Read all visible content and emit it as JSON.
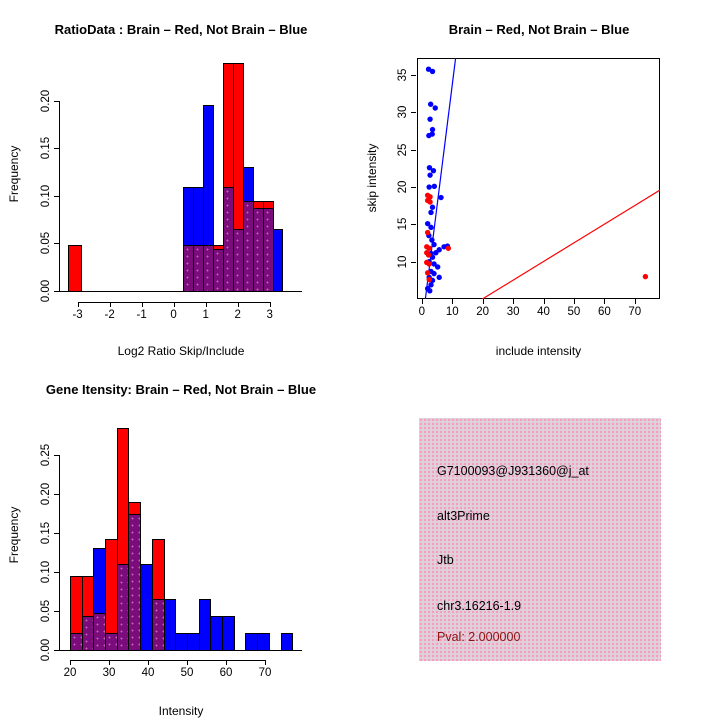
{
  "figure": {
    "background": "#ffffff"
  },
  "colors": {
    "red": "#ff0000",
    "blue": "#0000ff",
    "overlap_purple": "#7b0c7b",
    "axis": "#000000",
    "info_box_bg": "#ddd2dc",
    "pval_text": "#8b1212"
  },
  "info_box": {
    "lines": [
      "G7100093@J931360@j_at",
      "alt3Prime",
      "Jtb",
      "chr3.16216-1.9"
    ],
    "pval_line": "Pval: 2.000000"
  },
  "chart_data": [
    {
      "id": "ratio_hist",
      "type": "bar",
      "subtype": "overlaid-histograms",
      "title": "RatioData : Brain – Red, Not Brain – Blue",
      "xlabel": "Log2 Ratio Skip/Include",
      "ylabel": "Frequency",
      "legend": {
        "Brain": "red",
        "Not Brain": "blue",
        "overlap": "purple"
      },
      "xlim": [
        -3.55,
        4.01
      ],
      "ylim": [
        0,
        0.245
      ],
      "xticks": [
        {
          "v": -3,
          "t": "-3"
        },
        {
          "v": -2,
          "t": "-2"
        },
        {
          "v": -1,
          "t": "-1"
        },
        {
          "v": 0,
          "t": "0"
        },
        {
          "v": 1,
          "t": "1"
        },
        {
          "v": 2,
          "t": "2"
        },
        {
          "v": 3,
          "t": "3"
        }
      ],
      "yticks": [
        {
          "v": 0,
          "t": "0.00"
        },
        {
          "v": 0.05,
          "t": "0.05"
        },
        {
          "v": 0.1,
          "t": "0.10"
        },
        {
          "v": 0.15,
          "t": "0.15"
        },
        {
          "v": 0.2,
          "t": "0.20"
        }
      ],
      "bars": [
        {
          "x0": -3.31,
          "x1": -2.9,
          "red": 0.048,
          "blue": 0
        },
        {
          "x0": 0.3,
          "x1": 0.61,
          "red": 0.048,
          "blue": 0.109
        },
        {
          "x0": 0.61,
          "x1": 0.92,
          "red": 0.048,
          "blue": 0.109
        },
        {
          "x0": 0.92,
          "x1": 1.23,
          "red": 0.048,
          "blue": 0.196
        },
        {
          "x0": 1.23,
          "x1": 1.54,
          "red": 0.048,
          "blue": 0.044
        },
        {
          "x0": 1.54,
          "x1": 1.85,
          "red": 0.24,
          "blue": 0.109
        },
        {
          "x0": 1.85,
          "x1": 2.16,
          "red": 0.24,
          "blue": 0.065
        },
        {
          "x0": 2.16,
          "x1": 2.47,
          "red": 0.095,
          "blue": 0.13
        },
        {
          "x0": 2.47,
          "x1": 2.78,
          "red": 0.095,
          "blue": 0.087
        },
        {
          "x0": 2.78,
          "x1": 3.09,
          "red": 0.095,
          "blue": 0.087
        },
        {
          "x0": 3.09,
          "x1": 3.4,
          "red": 0,
          "blue": 0.065
        }
      ]
    },
    {
      "id": "intensity_scatter",
      "type": "scatter",
      "title": "Brain – Red, Not Brain – Blue",
      "xlabel": "include intensity",
      "ylabel": "skip intensity",
      "legend": {
        "Brain": "red",
        "Not Brain": "blue"
      },
      "xlim": [
        -1.6,
        78.3
      ],
      "ylim": [
        5,
        37.3
      ],
      "xticks": [
        {
          "v": 0,
          "t": "0"
        },
        {
          "v": 10,
          "t": "10"
        },
        {
          "v": 20,
          "t": "20"
        },
        {
          "v": 30,
          "t": "30"
        },
        {
          "v": 40,
          "t": "40"
        },
        {
          "v": 50,
          "t": "50"
        },
        {
          "v": 60,
          "t": "60"
        },
        {
          "v": 70,
          "t": "70"
        }
      ],
      "yticks": [
        {
          "v": 10,
          "t": "10"
        },
        {
          "v": 15,
          "t": "15"
        },
        {
          "v": 20,
          "t": "20"
        },
        {
          "v": 25,
          "t": "25"
        },
        {
          "v": 30,
          "t": "30"
        },
        {
          "v": 35,
          "t": "35"
        }
      ],
      "blue_points": [
        [
          2.2,
          35.8
        ],
        [
          3.5,
          35.5
        ],
        [
          2.9,
          31.1
        ],
        [
          4.4,
          30.6
        ],
        [
          2.7,
          29.1
        ],
        [
          3.5,
          27.7
        ],
        [
          2.3,
          26.9
        ],
        [
          3.4,
          27.1
        ],
        [
          2.5,
          22.6
        ],
        [
          3.8,
          22.2
        ],
        [
          2.7,
          21.6
        ],
        [
          4.1,
          20.1
        ],
        [
          2.4,
          20.0
        ],
        [
          6.3,
          18.6
        ],
        [
          3.5,
          17.3
        ],
        [
          3.0,
          16.6
        ],
        [
          1.9,
          15.1
        ],
        [
          3.0,
          14.6
        ],
        [
          2.3,
          13.5
        ],
        [
          3.3,
          12.9
        ],
        [
          4.0,
          12.3
        ],
        [
          7.3,
          12.0
        ],
        [
          8.4,
          12.1
        ],
        [
          5.7,
          11.6
        ],
        [
          4.6,
          11.2
        ],
        [
          3.0,
          11.1
        ],
        [
          3.5,
          10.6
        ],
        [
          2.4,
          10.0
        ],
        [
          4.0,
          9.7
        ],
        [
          5.2,
          9.3
        ],
        [
          3.0,
          8.7
        ],
        [
          4.0,
          8.4
        ],
        [
          2.4,
          7.9
        ],
        [
          5.7,
          7.9
        ],
        [
          3.5,
          7.5
        ],
        [
          3.0,
          6.9
        ],
        [
          1.9,
          6.4
        ],
        [
          2.6,
          6.1
        ]
      ],
      "red_points": [
        [
          1.9,
          18.9
        ],
        [
          2.7,
          18.7
        ],
        [
          1.9,
          18.2
        ],
        [
          2.7,
          18.0
        ],
        [
          1.9,
          13.9
        ],
        [
          1.6,
          12.0
        ],
        [
          2.4,
          11.8
        ],
        [
          8.7,
          11.8
        ],
        [
          1.6,
          11.2
        ],
        [
          2.2,
          10.9
        ],
        [
          1.6,
          9.9
        ],
        [
          2.4,
          9.7
        ],
        [
          1.9,
          8.5
        ],
        [
          2.4,
          7.6
        ],
        [
          73.5,
          8.0
        ]
      ],
      "blue_line": {
        "x1": 1.15,
        "y1": 5,
        "x2": 11.1,
        "y2": 37.3
      },
      "red_line": {
        "x1": 19.9,
        "y1": 5,
        "x2": 78.3,
        "y2": 19.6
      }
    },
    {
      "id": "gene_intensity_hist",
      "type": "bar",
      "subtype": "overlaid-histograms",
      "title": "Gene Itensity: Brain – Red, Not Brain – Blue",
      "xlabel": "Intensity",
      "ylabel": "Frequency",
      "legend": {
        "Brain": "red",
        "Not Brain": "blue",
        "overlap": "purple"
      },
      "xlim": [
        17.44,
        79.49
      ],
      "ylim": [
        0,
        0.295
      ],
      "xticks": [
        {
          "v": 20,
          "t": "20"
        },
        {
          "v": 30,
          "t": "30"
        },
        {
          "v": 40,
          "t": "40"
        },
        {
          "v": 50,
          "t": "50"
        },
        {
          "v": 60,
          "t": "60"
        },
        {
          "v": 70,
          "t": "70"
        }
      ],
      "yticks": [
        {
          "v": 0,
          "t": "0.00"
        },
        {
          "v": 0.05,
          "t": "0.05"
        },
        {
          "v": 0.1,
          "t": "0.10"
        },
        {
          "v": 0.15,
          "t": "0.15"
        },
        {
          "v": 0.2,
          "t": "0.20"
        },
        {
          "v": 0.25,
          "t": "0.25"
        }
      ],
      "bars": [
        {
          "x0": 20,
          "x1": 23,
          "red": 0.095,
          "blue": 0.022
        },
        {
          "x0": 23,
          "x1": 26,
          "red": 0.095,
          "blue": 0.044
        },
        {
          "x0": 26,
          "x1": 29,
          "red": 0.048,
          "blue": 0.131
        },
        {
          "x0": 29,
          "x1": 32,
          "red": 0.143,
          "blue": 0.022
        },
        {
          "x0": 32,
          "x1": 35,
          "red": 0.285,
          "blue": 0.11
        },
        {
          "x0": 35,
          "x1": 38,
          "red": 0.19,
          "blue": 0.175
        },
        {
          "x0": 38,
          "x1": 41,
          "red": 0,
          "blue": 0.11
        },
        {
          "x0": 41,
          "x1": 44,
          "red": 0.143,
          "blue": 0.065
        },
        {
          "x0": 44,
          "x1": 47,
          "red": 0,
          "blue": 0.065
        },
        {
          "x0": 47,
          "x1": 50,
          "red": 0,
          "blue": 0.022
        },
        {
          "x0": 50,
          "x1": 53,
          "red": 0,
          "blue": 0.022
        },
        {
          "x0": 53,
          "x1": 56,
          "red": 0,
          "blue": 0.065
        },
        {
          "x0": 56,
          "x1": 59,
          "red": 0,
          "blue": 0.044
        },
        {
          "x0": 59,
          "x1": 62,
          "red": 0,
          "blue": 0.044
        },
        {
          "x0": 65,
          "x1": 68,
          "red": 0,
          "blue": 0.022
        },
        {
          "x0": 68,
          "x1": 71,
          "red": 0,
          "blue": 0.022
        },
        {
          "x0": 74,
          "x1": 77,
          "red": 0,
          "blue": 0.022
        }
      ]
    }
  ]
}
